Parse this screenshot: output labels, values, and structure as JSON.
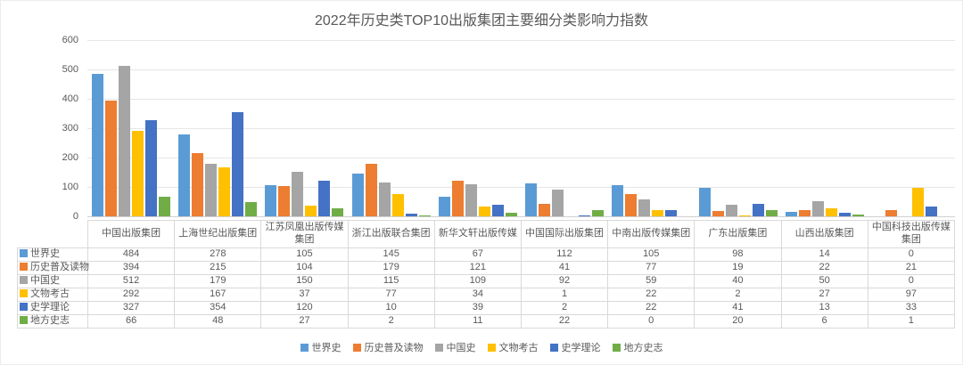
{
  "chart_data": {
    "type": "bar",
    "title": "2022年历史类TOP10出版集团主要细分类影响力指数",
    "categories": [
      "中国出版集团",
      "上海世纪出版集团",
      "江苏凤凰出版传媒集团",
      "浙江出版联合集团",
      "新华文轩出版传媒",
      "中国国际出版集团",
      "中南出版传媒集团",
      "广东出版集团",
      "山西出版集团",
      "中国科技出版传媒集团"
    ],
    "series": [
      {
        "name": "世界史",
        "color": "#5B9BD5",
        "values": [
          484,
          278,
          105,
          145,
          67,
          112,
          105,
          98,
          14,
          0
        ]
      },
      {
        "name": "历史普及读物",
        "color": "#ED7D31",
        "values": [
          394,
          215,
          104,
          179,
          121,
          41,
          77,
          19,
          22,
          21
        ]
      },
      {
        "name": "中国史",
        "color": "#A5A5A5",
        "values": [
          512,
          179,
          150,
          115,
          109,
          92,
          59,
          40,
          50,
          0
        ]
      },
      {
        "name": "文物考古",
        "color": "#FFC000",
        "values": [
          292,
          167,
          37,
          77,
          34,
          1,
          22,
          2,
          27,
          97
        ]
      },
      {
        "name": "史学理论",
        "color": "#4472C4",
        "values": [
          327,
          354,
          120,
          10,
          39,
          2,
          22,
          41,
          13,
          33
        ]
      },
      {
        "name": "地方史志",
        "color": "#70AD47",
        "values": [
          66,
          48,
          27,
          2,
          11,
          22,
          0,
          20,
          6,
          1
        ]
      }
    ],
    "xlabel": "",
    "ylabel": "",
    "ylim": [
      0,
      600
    ],
    "y_ticks": [
      0,
      100,
      200,
      300,
      400,
      500,
      600
    ],
    "grid": true,
    "legend_position": "bottom",
    "data_table_shown": true
  }
}
